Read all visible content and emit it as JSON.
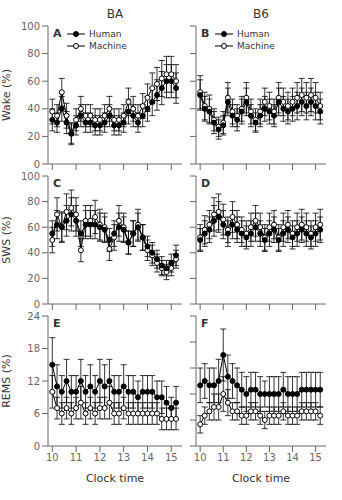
{
  "chart_data": [
    {
      "type": "line",
      "title": "BA",
      "annotations": [
        "A"
      ],
      "ylabel": "Wake (%)",
      "tick_labels": "y",
      "legend": "upper left",
      "grid": false,
      "x": [
        10.0,
        10.2,
        10.4,
        10.6,
        10.8,
        11.0,
        11.2,
        11.4,
        11.6,
        11.8,
        12.0,
        12.2,
        12.4,
        12.6,
        12.8,
        13.0,
        13.2,
        13.4,
        13.6,
        13.8,
        14.0,
        14.2,
        14.4,
        14.6,
        14.8,
        15.0,
        15.2
      ],
      "xlim": [
        9.82,
        15.45
      ],
      "xticks": [
        10,
        11,
        12,
        13,
        14,
        15
      ],
      "ylim": [
        0,
        100
      ],
      "yticks": [
        0,
        20,
        40,
        60,
        80,
        100
      ],
      "series": [
        {
          "name": "Human",
          "color": "black",
          "marker": "filled",
          "values": [
            32,
            30,
            40,
            30,
            22,
            28,
            35,
            30,
            30,
            28,
            28,
            30,
            35,
            28,
            28,
            30,
            38,
            35,
            30,
            35,
            40,
            45,
            50,
            55,
            60,
            60,
            55
          ],
          "errors": [
            8,
            7,
            9,
            8,
            7,
            7,
            8,
            7,
            7,
            7,
            7,
            7,
            8,
            7,
            7,
            7,
            9,
            8,
            7,
            8,
            9,
            10,
            11,
            12,
            12,
            12,
            11
          ]
        },
        {
          "name": "Machine",
          "color": "black",
          "marker": "open",
          "values": [
            38,
            35,
            52,
            35,
            22,
            32,
            40,
            35,
            35,
            32,
            32,
            35,
            40,
            32,
            32,
            35,
            45,
            40,
            35,
            42,
            48,
            55,
            58,
            62,
            65,
            65,
            60
          ],
          "errors": [
            9,
            8,
            10,
            9,
            8,
            8,
            9,
            8,
            8,
            8,
            8,
            8,
            9,
            8,
            8,
            8,
            10,
            9,
            8,
            9,
            10,
            11,
            12,
            13,
            13,
            13,
            12
          ]
        }
      ]
    },
    {
      "type": "line",
      "title": "B6",
      "annotations": [
        "B"
      ],
      "tick_labels": false,
      "legend": "upper left",
      "grid": false,
      "x": [
        10.0,
        10.2,
        10.4,
        10.6,
        10.8,
        11.0,
        11.2,
        11.4,
        11.6,
        11.8,
        12.0,
        12.2,
        12.4,
        12.6,
        12.8,
        13.0,
        13.2,
        13.4,
        13.6,
        13.8,
        14.0,
        14.2,
        14.4,
        14.6,
        14.8,
        15.0,
        15.2
      ],
      "xlim": [
        9.82,
        15.45
      ],
      "xticks": [
        10,
        11,
        12,
        13,
        14,
        15
      ],
      "ylim": [
        0,
        100
      ],
      "yticks": [
        0,
        20,
        40,
        60,
        80,
        100
      ],
      "series": [
        {
          "name": "Human",
          "color": "black",
          "marker": "filled",
          "values": [
            50,
            40,
            38,
            30,
            25,
            28,
            45,
            35,
            32,
            38,
            45,
            35,
            30,
            35,
            40,
            38,
            35,
            45,
            40,
            38,
            40,
            42,
            45,
            42,
            45,
            42,
            38
          ],
          "errors": [
            11,
            9,
            9,
            8,
            7,
            7,
            10,
            8,
            8,
            9,
            10,
            8,
            7,
            8,
            9,
            9,
            8,
            10,
            9,
            9,
            9,
            10,
            10,
            10,
            10,
            10,
            9
          ]
        },
        {
          "name": "Machine",
          "color": "black",
          "marker": "open",
          "values": [
            52,
            42,
            40,
            32,
            27,
            30,
            48,
            38,
            35,
            40,
            48,
            38,
            32,
            38,
            45,
            42,
            38,
            48,
            45,
            42,
            45,
            48,
            50,
            48,
            50,
            48,
            42
          ],
          "errors": [
            12,
            10,
            10,
            8,
            7,
            8,
            11,
            9,
            8,
            9,
            11,
            9,
            8,
            9,
            10,
            10,
            9,
            11,
            10,
            10,
            10,
            11,
            12,
            11,
            12,
            11,
            10
          ]
        }
      ]
    },
    {
      "type": "line",
      "annotations": [
        "C"
      ],
      "ylabel": "SWS (%)",
      "tick_labels": "y",
      "grid": false,
      "x": [
        10.0,
        10.2,
        10.4,
        10.6,
        10.8,
        11.0,
        11.2,
        11.4,
        11.6,
        11.8,
        12.0,
        12.2,
        12.4,
        12.6,
        12.8,
        13.0,
        13.2,
        13.4,
        13.6,
        13.8,
        14.0,
        14.2,
        14.4,
        14.6,
        14.8,
        15.0,
        15.2
      ],
      "xlim": [
        9.82,
        15.45
      ],
      "xticks": [
        10,
        11,
        12,
        13,
        14,
        15
      ],
      "ylim": [
        0,
        100
      ],
      "yticks": [
        0,
        20,
        40,
        60,
        80,
        100
      ],
      "series": [
        {
          "name": "Human",
          "color": "black",
          "marker": "filled",
          "values": [
            55,
            62,
            60,
            65,
            70,
            65,
            55,
            62,
            62,
            62,
            60,
            58,
            50,
            55,
            60,
            58,
            48,
            55,
            60,
            52,
            45,
            40,
            35,
            30,
            28,
            32,
            38
          ],
          "errors": [
            10,
            11,
            11,
            12,
            13,
            12,
            10,
            11,
            11,
            11,
            11,
            10,
            9,
            10,
            11,
            10,
            9,
            10,
            11,
            10,
            8,
            8,
            7,
            7,
            6,
            7,
            8
          ]
        },
        {
          "name": "Machine",
          "color": "black",
          "marker": "open",
          "values": [
            50,
            70,
            60,
            72,
            75,
            70,
            42,
            65,
            65,
            68,
            62,
            60,
            43,
            52,
            65,
            60,
            48,
            55,
            62,
            52,
            42,
            38,
            32,
            28,
            25,
            28,
            35
          ],
          "errors": [
            10,
            13,
            12,
            14,
            14,
            13,
            9,
            12,
            12,
            13,
            12,
            11,
            9,
            10,
            12,
            11,
            9,
            10,
            12,
            10,
            8,
            8,
            7,
            6,
            6,
            6,
            7
          ]
        }
      ]
    },
    {
      "type": "line",
      "annotations": [
        "D"
      ],
      "tick_labels": false,
      "grid": false,
      "x": [
        10.0,
        10.2,
        10.4,
        10.6,
        10.8,
        11.0,
        11.2,
        11.4,
        11.6,
        11.8,
        12.0,
        12.2,
        12.4,
        12.6,
        12.8,
        13.0,
        13.2,
        13.4,
        13.6,
        13.8,
        14.0,
        14.2,
        14.4,
        14.6,
        14.8,
        15.0,
        15.2
      ],
      "xlim": [
        9.82,
        15.45
      ],
      "xticks": [
        10,
        11,
        12,
        13,
        14,
        15
      ],
      "ylim": [
        0,
        100
      ],
      "yticks": [
        0,
        20,
        40,
        60,
        80,
        100
      ],
      "series": [
        {
          "name": "Human",
          "color": "black",
          "marker": "filled",
          "values": [
            50,
            55,
            58,
            65,
            68,
            62,
            55,
            62,
            58,
            55,
            52,
            55,
            60,
            55,
            50,
            55,
            58,
            50,
            55,
            58,
            52,
            55,
            58,
            55,
            52,
            55,
            58
          ],
          "errors": [
            9,
            10,
            10,
            12,
            12,
            11,
            10,
            11,
            10,
            10,
            9,
            10,
            11,
            10,
            9,
            10,
            10,
            9,
            10,
            10,
            9,
            10,
            10,
            10,
            9,
            10,
            10
          ]
        },
        {
          "name": "Machine",
          "color": "black",
          "marker": "open",
          "values": [
            52,
            58,
            62,
            70,
            72,
            66,
            58,
            68,
            62,
            58,
            55,
            60,
            65,
            60,
            52,
            60,
            62,
            52,
            60,
            62,
            55,
            60,
            62,
            60,
            55,
            60,
            62
          ],
          "errors": [
            10,
            11,
            11,
            13,
            14,
            12,
            10,
            12,
            11,
            10,
            10,
            11,
            12,
            11,
            10,
            11,
            11,
            10,
            11,
            11,
            10,
            11,
            12,
            11,
            10,
            11,
            12
          ]
        }
      ]
    },
    {
      "type": "line",
      "annotations": [
        "E"
      ],
      "ylabel": "REMS (%)",
      "xlabel": "Clock time",
      "grid": false,
      "x": [
        10.0,
        10.2,
        10.4,
        10.6,
        10.8,
        11.0,
        11.2,
        11.4,
        11.6,
        11.8,
        12.0,
        12.2,
        12.4,
        12.6,
        12.8,
        13.0,
        13.2,
        13.4,
        13.6,
        13.8,
        14.0,
        14.2,
        14.4,
        14.6,
        14.8,
        15.0,
        15.2
      ],
      "xlim": [
        9.82,
        15.45
      ],
      "xticks": [
        10,
        11,
        12,
        13,
        14,
        15
      ],
      "ylim": [
        0,
        24
      ],
      "yticks": [
        0,
        6,
        12,
        18,
        24
      ],
      "series": [
        {
          "name": "Human",
          "color": "black",
          "marker": "filled",
          "values": [
            15,
            11,
            10,
            12,
            10,
            10,
            12,
            10,
            11,
            10,
            12,
            11,
            12,
            10,
            10,
            11,
            10,
            10,
            9,
            10,
            10,
            10,
            9,
            9,
            8,
            7,
            8
          ],
          "errors": [
            5,
            4,
            3,
            4,
            3,
            3,
            4,
            3,
            4,
            3,
            4,
            4,
            4,
            3,
            3,
            4,
            3,
            3,
            3,
            3,
            3,
            3,
            3,
            3,
            3,
            2,
            3
          ]
        },
        {
          "name": "Machine",
          "color": "black",
          "marker": "open",
          "values": [
            10,
            7,
            6,
            7,
            6,
            7,
            8,
            6,
            7,
            6,
            7,
            7,
            8,
            6,
            6,
            7,
            6,
            6,
            6,
            6,
            6,
            6,
            6,
            5,
            5,
            5,
            5
          ],
          "errors": [
            3,
            2,
            2,
            2,
            2,
            2,
            3,
            2,
            2,
            2,
            2,
            2,
            3,
            2,
            2,
            2,
            2,
            2,
            2,
            2,
            2,
            2,
            2,
            2,
            2,
            2,
            2
          ]
        }
      ]
    },
    {
      "type": "line",
      "annotations": [
        "F"
      ],
      "xlabel": "Clock time",
      "tick_labels": "x",
      "grid": false,
      "x": [
        10.0,
        10.2,
        10.4,
        10.6,
        10.8,
        11.0,
        11.2,
        11.4,
        11.6,
        11.8,
        12.0,
        12.2,
        12.4,
        12.6,
        12.8,
        13.0,
        13.2,
        13.4,
        13.6,
        13.8,
        14.0,
        14.2,
        14.4,
        14.6,
        14.8,
        15.0,
        15.2
      ],
      "xlim": [
        9.82,
        15.45
      ],
      "xticks": [
        10,
        11,
        12,
        13,
        14,
        15
      ],
      "ylim": [
        0,
        30
      ],
      "yticks": [
        0,
        6,
        12,
        18,
        24,
        30
      ],
      "series": [
        {
          "name": "Human",
          "color": "black",
          "marker": "filled",
          "values": [
            14,
            15,
            14,
            14,
            15,
            21,
            16,
            15,
            14,
            13,
            12,
            13,
            13,
            12,
            12,
            12,
            12,
            12,
            13,
            12,
            12,
            12,
            13,
            13,
            13,
            13,
            13
          ],
          "errors": [
            4,
            4,
            4,
            4,
            5,
            6,
            5,
            4,
            4,
            4,
            4,
            4,
            4,
            4,
            3,
            4,
            4,
            4,
            4,
            4,
            4,
            4,
            4,
            4,
            4,
            4,
            4
          ]
        },
        {
          "name": "Machine",
          "color": "black",
          "marker": "open",
          "values": [
            5,
            7,
            8,
            9,
            9,
            12,
            10,
            8,
            8,
            7,
            7,
            8,
            8,
            7,
            6,
            7,
            7,
            7,
            8,
            7,
            7,
            7,
            8,
            8,
            8,
            8,
            7
          ],
          "errors": [
            2,
            2,
            2,
            3,
            3,
            4,
            3,
            2,
            2,
            2,
            2,
            2,
            2,
            2,
            2,
            2,
            2,
            2,
            2,
            2,
            2,
            2,
            2,
            2,
            2,
            2,
            2
          ]
        }
      ]
    }
  ]
}
